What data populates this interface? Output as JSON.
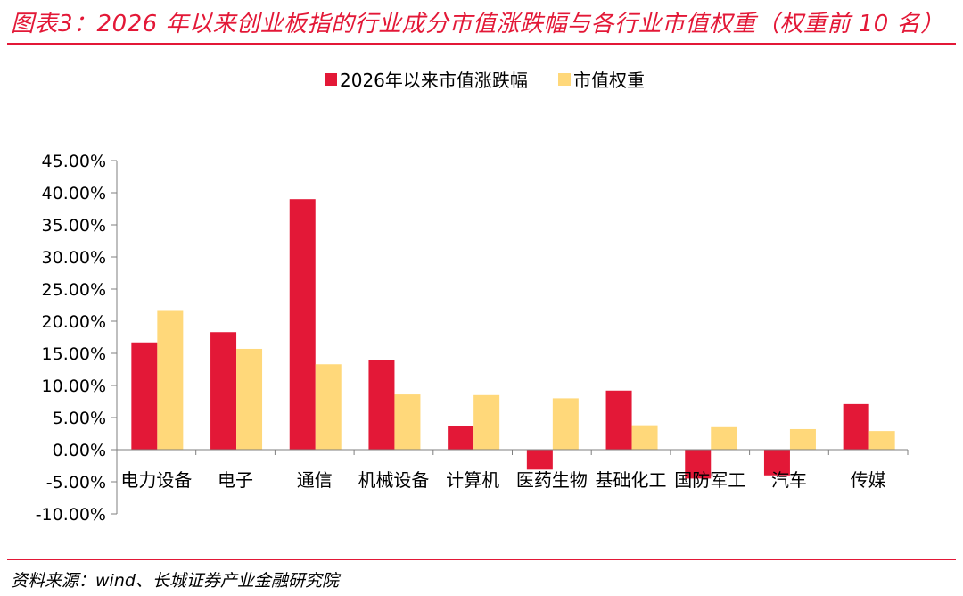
{
  "title": "图表3：2026 年以来创业板指的行业成分市值涨跌幅与各行业市值权重（权重前 10 名）",
  "source": "资料来源：wind、长城证券产业金融研究院",
  "colors": {
    "accent": "#E31837",
    "series1": "#E31837",
    "series2": "#FFD87A"
  },
  "chart_data": {
    "type": "bar",
    "categories": [
      "电力设备",
      "电子",
      "通信",
      "机械设备",
      "计算机",
      "医药生物",
      "基础化工",
      "国防军工",
      "汽车",
      "传媒"
    ],
    "series": [
      {
        "name": "2026年以来市值涨跌幅",
        "values": [
          16.7,
          18.3,
          39.0,
          14.0,
          3.7,
          -3.1,
          9.2,
          -4.5,
          -4.0,
          7.1
        ]
      },
      {
        "name": "市值权重",
        "values": [
          21.6,
          15.7,
          13.3,
          8.6,
          8.5,
          8.0,
          3.8,
          3.5,
          3.2,
          2.9
        ]
      }
    ],
    "ylim": [
      -10,
      45
    ],
    "yticks": [
      "45.00%",
      "40.00%",
      "35.00%",
      "30.00%",
      "25.00%",
      "20.00%",
      "15.00%",
      "10.00%",
      "5.00%",
      "0.00%",
      "-5.00%",
      "-10.00%"
    ],
    "legend_position": "top-center",
    "grid": false
  }
}
